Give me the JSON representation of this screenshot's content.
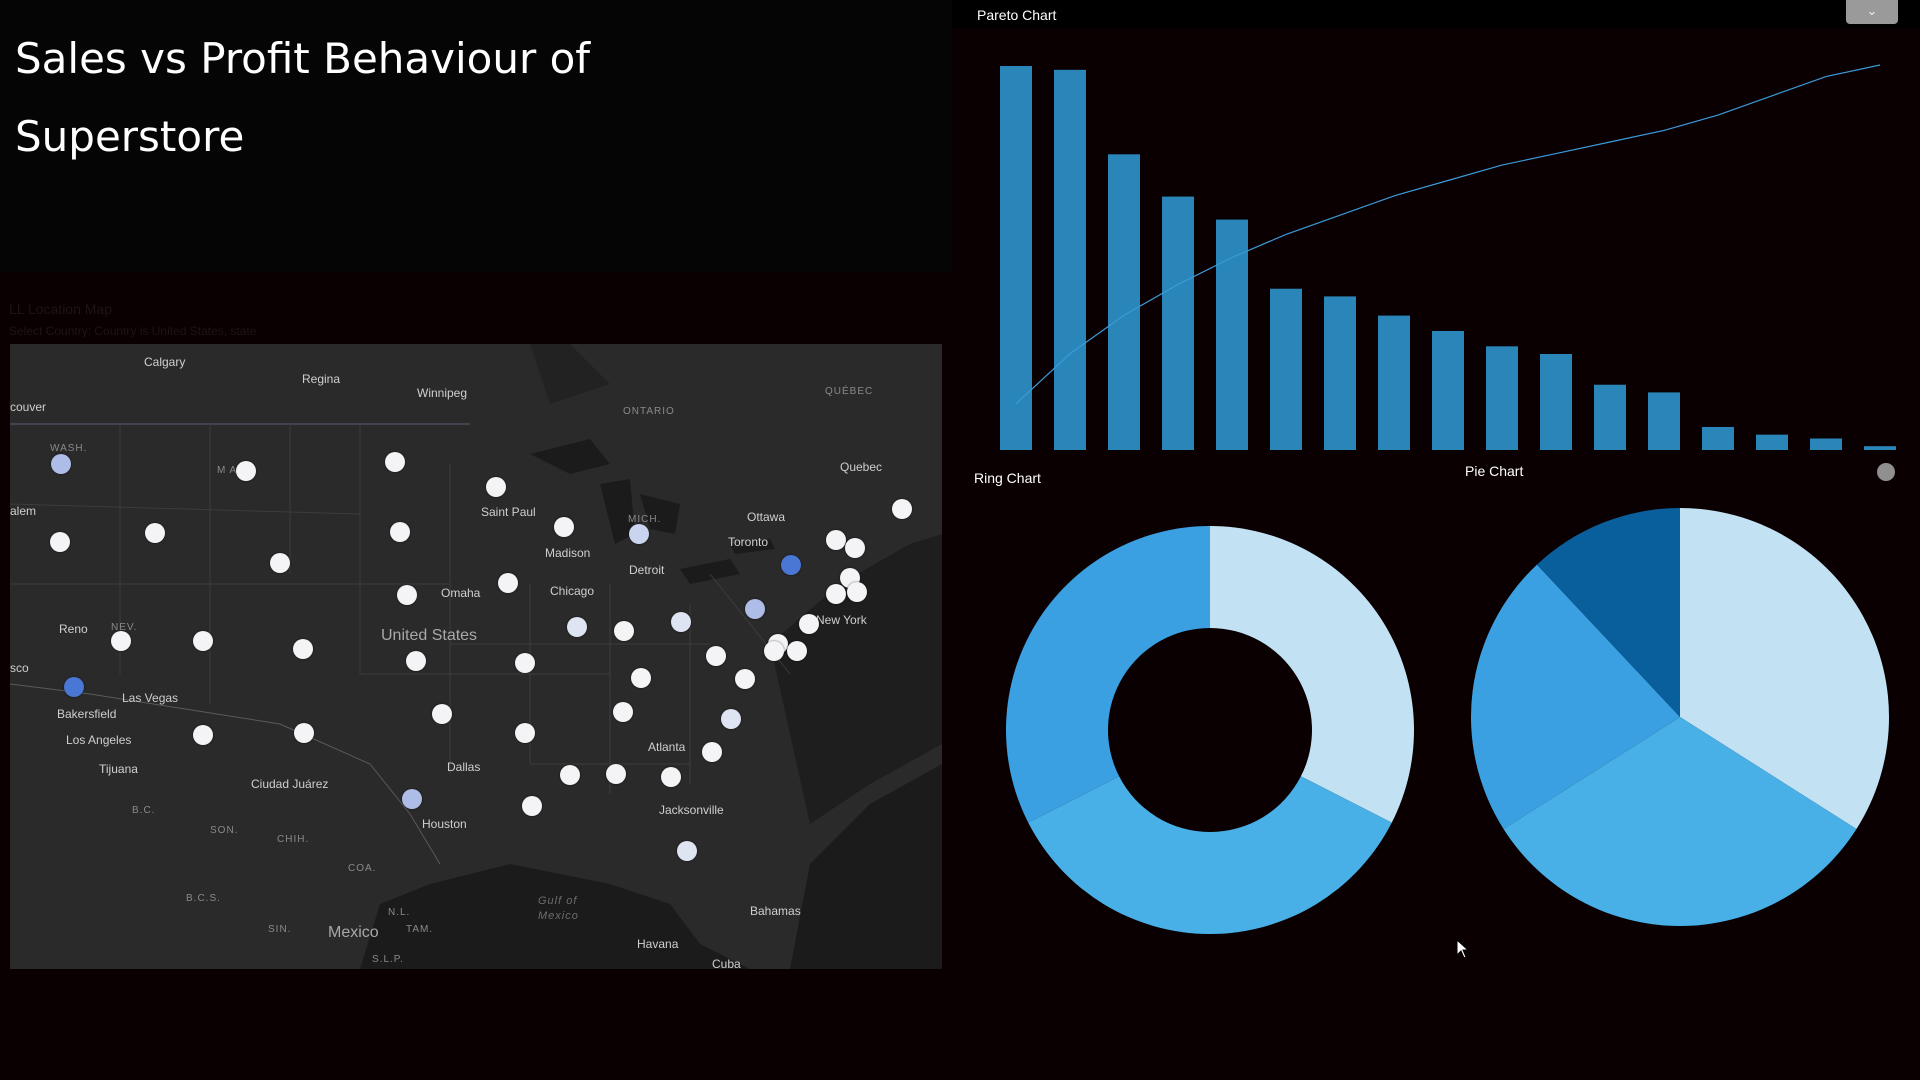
{
  "title": {
    "line1": "Sales vs Profit Behaviour of",
    "line2": "Superstore"
  },
  "map": {
    "caption": "LL Location Map",
    "subcaption": "Select Country: Country is United States, state",
    "labels": {
      "calgary": "Calgary",
      "regina": "Regina",
      "winnipeg": "Winnipeg",
      "ontario": "ONTARIO",
      "quebec_prov": "QUÉBEC",
      "vancouver": "couver",
      "wash": "WASH.",
      "mont": "M ANA",
      "salem": "alem",
      "saint_paul": "Saint Paul",
      "ottawa": "Ottawa",
      "quebec": "Quebec",
      "mich": "MICH.",
      "toronto": "Toronto",
      "madison": "Madison",
      "detroit": "Detroit",
      "chicago": "Chicago",
      "omaha": "Omaha",
      "new_york": "New York",
      "reno": "Reno",
      "nev": "NEV.",
      "united_states": "United States",
      "sco": "sco",
      "las_vegas": "Las Vegas",
      "bakersfield": "Bakersfield",
      "los_angeles": "Los Angeles",
      "tijuana": "Tijuana",
      "atlanta": "Atlanta",
      "dallas": "Dallas",
      "ciudad_juarez": "Ciudad Juárez",
      "houston": "Houston",
      "jacksonville": "Jacksonville",
      "bc": "B.C.",
      "son": "SON.",
      "chih": "CHIH.",
      "coa": "COA.",
      "bcs": "B.C.S.",
      "sin": "SIN.",
      "nl": "N.L.",
      "tam": "TAM.",
      "mexico": "Mexico",
      "slp": "S.L.P.",
      "gulf": "Gulf of",
      "gulf2": "Mexico",
      "bahamas": "Bahamas",
      "havana": "Havana",
      "cuba": "Cuba"
    },
    "colors": {
      "land": "#2a2a2a",
      "water": "#1a1a1a",
      "marker": "#f4f4f6",
      "marker_mid": "#aebde8",
      "marker_dark": "#4a77d4"
    }
  },
  "charts": {
    "pareto_title": "Pareto Chart",
    "ring_title": "Ring Chart",
    "pie_title": "Pie Chart",
    "dropdown_icon": "chevron-down-icon"
  },
  "chart_data": [
    {
      "type": "bar",
      "name": "Pareto Chart",
      "values": [
        100,
        99,
        77,
        66,
        60,
        42,
        40,
        35,
        31,
        27,
        25,
        17,
        15,
        6,
        4,
        3,
        1
      ],
      "cumulative_percent": [
        12,
        25,
        35,
        43,
        50,
        56,
        61,
        66,
        70,
        74,
        77,
        80,
        83,
        87,
        92,
        97,
        100
      ],
      "color": "#2a85b8",
      "line_color": "#3b9ad8"
    },
    {
      "type": "pie",
      "name": "Ring Chart",
      "donut": true,
      "values": [
        32.5,
        35.0,
        32.5
      ],
      "colors": [
        "#c2e2f4",
        "#48b0e6",
        "#3aa0e2"
      ]
    },
    {
      "type": "pie",
      "name": "Pie Chart",
      "values": [
        34.0,
        32.0,
        22.0,
        12.0
      ],
      "colors": [
        "#c2e2f4",
        "#48b0e6",
        "#3aa0e2",
        "#085f9c"
      ]
    }
  ]
}
